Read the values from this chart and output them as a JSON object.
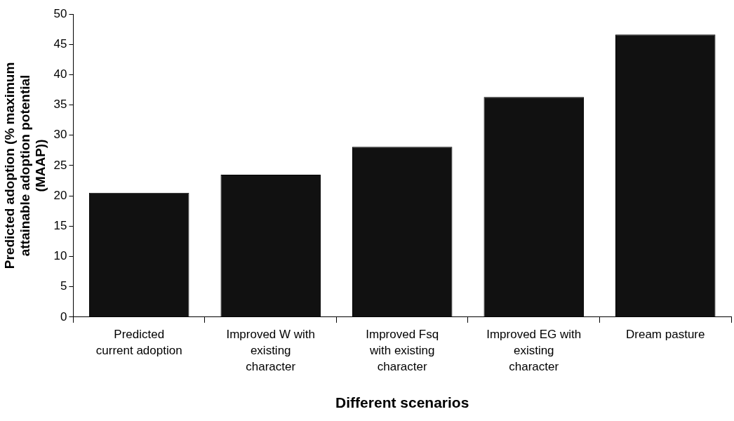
{
  "chart_data": {
    "type": "bar",
    "xlabel": "Different scenarios",
    "ylabel": "Predicted adoption (% maximum attainable adoption potential (MAAP))",
    "categories": [
      "Predicted current adoption",
      "Improved W with existing character",
      "Improved Fsq with existing character",
      "Improved EG with existing character",
      "Dream pasture"
    ],
    "values": [
      20.5,
      23.5,
      28.1,
      36.3,
      46.6
    ],
    "color": "#111111",
    "ylim": [
      0,
      50
    ],
    "yticks": [
      0,
      5,
      10,
      15,
      20,
      25,
      30,
      35,
      40,
      45,
      50
    ],
    "grid": false,
    "legend": false
  }
}
